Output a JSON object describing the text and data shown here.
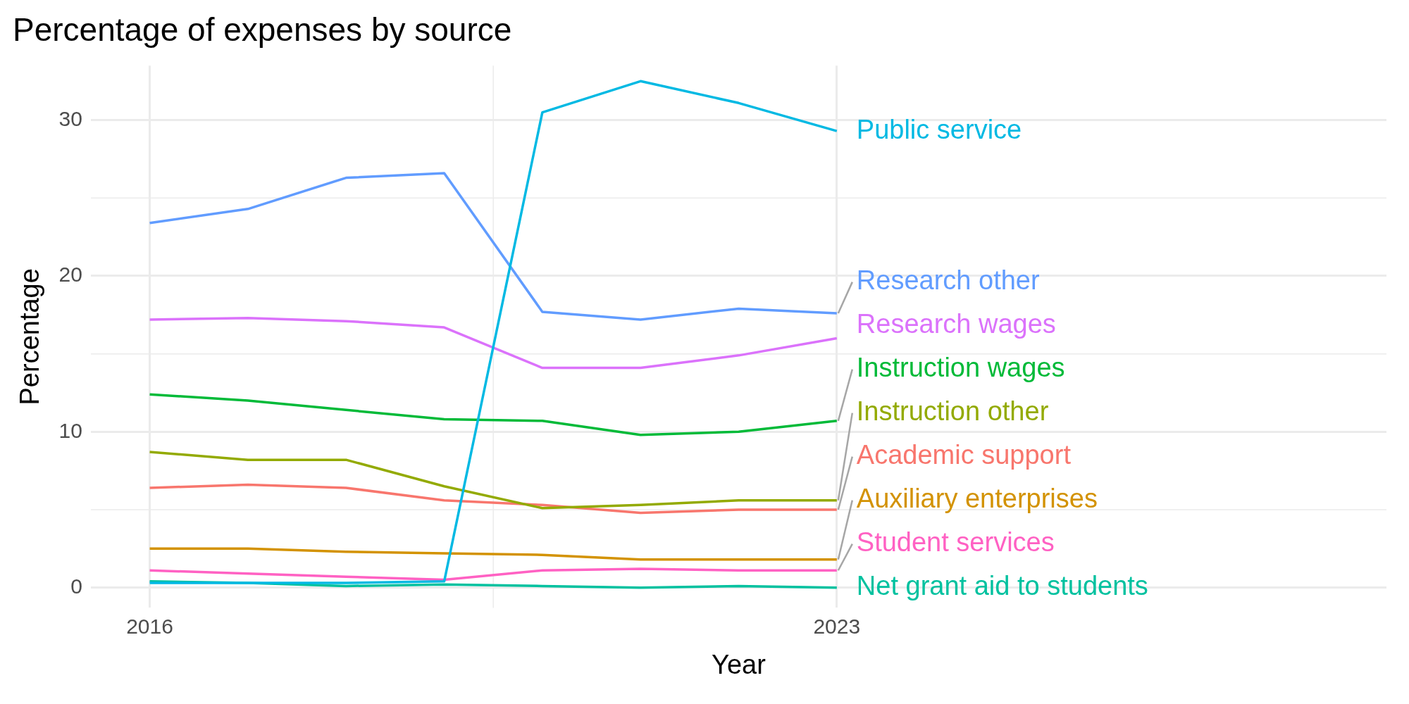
{
  "chart_data": {
    "type": "line",
    "title": "Percentage of expenses by source",
    "xlabel": "Year",
    "ylabel": "Percentage",
    "x": [
      2016,
      2017,
      2018,
      2019,
      2020,
      2021,
      2022,
      2023
    ],
    "xlim": [
      2015.4,
      2028.6
    ],
    "xticks": [
      2016,
      2023
    ],
    "ylim": [
      -1.3,
      33.5
    ],
    "yticks": [
      0,
      10,
      20,
      30
    ],
    "grid": true,
    "legend": false,
    "marker": "none",
    "line_style": "solid",
    "series": [
      {
        "name": "Public service",
        "color": "#00b9e3",
        "values": [
          0.3,
          0.3,
          0.3,
          0.4,
          30.5,
          32.5,
          31.1,
          29.3
        ]
      },
      {
        "name": "Research other",
        "color": "#619cff",
        "values": [
          23.4,
          24.3,
          26.3,
          26.6,
          17.7,
          17.2,
          17.9,
          17.6
        ]
      },
      {
        "name": "Research wages",
        "color": "#db72fb",
        "values": [
          17.2,
          17.3,
          17.1,
          16.7,
          14.1,
          14.1,
          14.9,
          16.0
        ]
      },
      {
        "name": "Instruction wages",
        "color": "#00ba38",
        "values": [
          12.4,
          12.0,
          11.4,
          10.8,
          10.7,
          9.8,
          10.0,
          10.7
        ]
      },
      {
        "name": "Instruction other",
        "color": "#93aa00",
        "values": [
          8.7,
          8.2,
          8.2,
          6.5,
          5.1,
          5.3,
          5.6,
          5.6
        ]
      },
      {
        "name": "Academic support",
        "color": "#f8766d",
        "values": [
          6.4,
          6.6,
          6.4,
          5.6,
          5.3,
          4.8,
          5.0,
          5.0
        ]
      },
      {
        "name": "Auxiliary enterprises",
        "color": "#d39200",
        "values": [
          2.5,
          2.5,
          2.3,
          2.2,
          2.1,
          1.8,
          1.8,
          1.8
        ]
      },
      {
        "name": "Student services",
        "color": "#ff61c3",
        "values": [
          1.1,
          0.9,
          0.7,
          0.5,
          1.1,
          1.2,
          1.1,
          1.1
        ]
      },
      {
        "name": "Net grant aid to students",
        "color": "#00c19f",
        "values": [
          0.4,
          0.3,
          0.1,
          0.2,
          0.1,
          0.0,
          0.1,
          0.0
        ]
      }
    ]
  }
}
